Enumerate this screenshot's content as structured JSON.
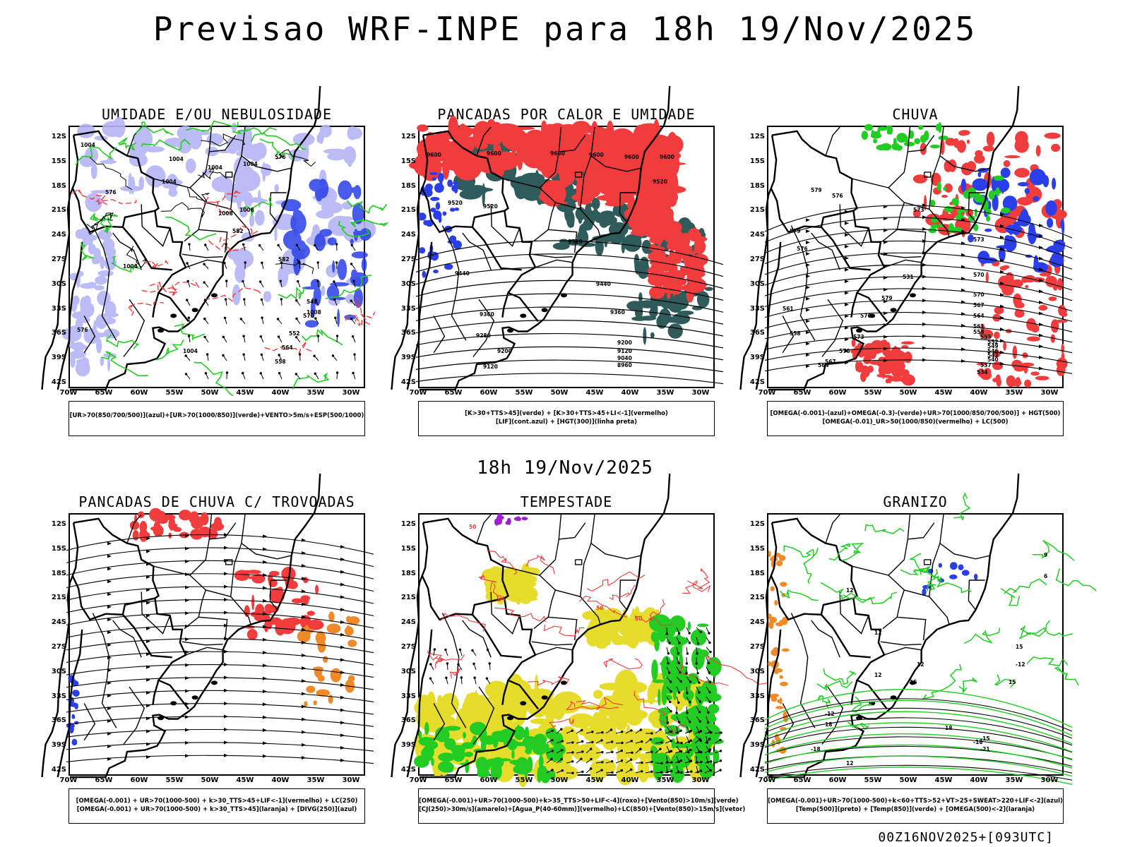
{
  "header": {
    "title": "Previsao WRF-INPE  para 18h 19/Nov/2025",
    "mid_title": "18h 19/Nov/2025",
    "footer": "00Z16NOV2025+[093UTC]"
  },
  "axes": {
    "lat_ticks": [
      "12S",
      "15S",
      "18S",
      "21S",
      "24S",
      "27S",
      "30S",
      "33S",
      "36S",
      "39S",
      "42S"
    ],
    "lon_ticks": [
      "70W",
      "65W",
      "60W",
      "55W",
      "50W",
      "45W",
      "40W",
      "35W",
      "30W"
    ]
  },
  "colors": {
    "red": "#f03c3c",
    "green": "#22cc22",
    "blue": "#2a3fe8",
    "lavender": "#b4b4f5",
    "dark_teal": "#2f5b5a",
    "yellow": "#e6dc2c",
    "orange": "#f08a28",
    "purple": "#a020d0"
  },
  "panels": [
    {
      "id": "umidade",
      "title": "UMIDADE E/OU NEBULOSIDADE",
      "legend": [
        "[UR>70(850/700/500)](azul)+[UR>70(1000/850)](verde)+VENTO>5m/s+ESP(500/1000)"
      ],
      "contour_labels": [
        "1004",
        "1004",
        "1004",
        "1004",
        "1004",
        "1008",
        "1008",
        "1004",
        "1004",
        "576",
        "576",
        "576",
        "582",
        "582",
        "546",
        "552",
        "558",
        "564",
        "570",
        "1008"
      ]
    },
    {
      "id": "pancadas_calor",
      "title": "PANCADAS POR CALOR E UMIDADE",
      "legend": [
        "[K>30+TTS>45](verde) + [K>30+TTS>45+LI<-1](vermelho)",
        "[LIF](cont.azul) + [HGT(300)](linha preta)"
      ],
      "contour_labels": [
        "9600",
        "9600",
        "9600",
        "9600",
        "9600",
        "9600",
        "9520",
        "9520",
        "9520",
        "9520",
        "9440",
        "9440",
        "9360",
        "9360",
        "9280",
        "9200",
        "9200",
        "9120",
        "9120",
        "9040",
        "8960"
      ]
    },
    {
      "id": "chuva",
      "title": "CHUVA",
      "legend": [
        "[OMEGA(-0.001)-(azul)+OMEGA(-0.3)-(verde)+UR>70(1000/850/700/500)] + HGT(500)",
        "[OMEGA(-0.01)_UR>50(1000/850)(vermelho) + LC(500)"
      ],
      "contour_labels": [
        "579",
        "576",
        "573",
        "579",
        "576",
        "573",
        "570",
        "570",
        "567",
        "564",
        "561",
        "558",
        "555",
        "552",
        "549",
        "546",
        "543",
        "540",
        "537",
        "534",
        "531",
        "579",
        "576",
        "573",
        "570",
        "567",
        "564",
        "561",
        "558"
      ]
    },
    {
      "id": "pancadas_trovoadas",
      "title": "PANCADAS DE CHUVA C/ TROVOADAS",
      "legend": [
        "[OMEGA(-0.001) + UR>70(1000-500) + k>30_TTS>45+LIF<-1](vermelho) + LC(250)",
        "[OMEGA(-0.001) + UR>70(1000-500) + k>30_TTS>45](laranja) + [DIVG(250)](azul)"
      ],
      "contour_labels": []
    },
    {
      "id": "tempestade",
      "title": "TEMPESTADE",
      "legend": [
        "[OMEGA(-0.001)+UR>70(1000-500)+k>35_TTS>50+LIF<-4](roxo)+[Vento(850)>10m/s](verde)",
        "[CJ(250)>30m/s](amarelo)+[Agua_P(40-60mm)](vermelho)+LC(850)+[Vento(850)>15m/s](vetor)"
      ],
      "contour_labels": [
        "50",
        "50",
        "50"
      ]
    },
    {
      "id": "granizo",
      "title": "GRANIZO",
      "legend": [
        "[OMEGA(-0.001)+UR>70(1000-500)+k<60+TTS>52+VT>25+SWEAT>220+LIF<-2](azul)",
        "[Temp(500)](preto) + [Temp(850)](verde) + [OMEGA(500)<-2](laranja)"
      ],
      "contour_labels": [
        "-12",
        "-12",
        "-15",
        "-18",
        "-21",
        "-18",
        "12",
        "12",
        "12",
        "12",
        "12",
        "15",
        "15",
        "15",
        "18",
        "18",
        "9",
        "6"
      ]
    }
  ]
}
